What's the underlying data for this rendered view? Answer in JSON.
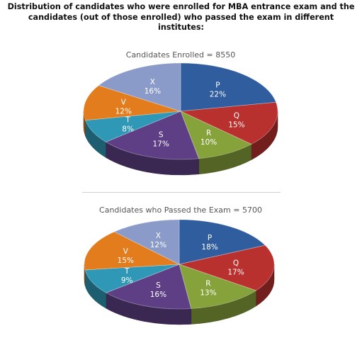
{
  "title_lines": [
    "Distribution of candidates who were enrolled for MBA entrance exam and the",
    "candidates (out of those enrolled) who passed the exam in different",
    "institutes:"
  ],
  "colors": {
    "P": "#2f5d9e",
    "Q": "#b8312f",
    "R": "#86a23a",
    "S": "#5e3f85",
    "T": "#2e98b6",
    "V": "#e27c1c",
    "X": "#8b9bc9"
  },
  "chart_data": [
    {
      "type": "pie",
      "title": "Candidates Enrolled = 8550",
      "categories": [
        "P",
        "Q",
        "R",
        "S",
        "T",
        "V",
        "X"
      ],
      "values": [
        22,
        15,
        10,
        17,
        8,
        12,
        16
      ],
      "value_labels": [
        "22%",
        "15%",
        "10%",
        "17%",
        "8%",
        "12%",
        "16%"
      ]
    },
    {
      "type": "pie",
      "title": "Candidates who Passed the Exam = 5700",
      "categories": [
        "P",
        "Q",
        "R",
        "S",
        "T",
        "V",
        "X"
      ],
      "values": [
        18,
        17,
        13,
        16,
        9,
        15,
        12
      ],
      "value_labels": [
        "18%",
        "17%",
        "13%",
        "16%",
        "9%",
        "15%",
        "12%"
      ]
    }
  ]
}
